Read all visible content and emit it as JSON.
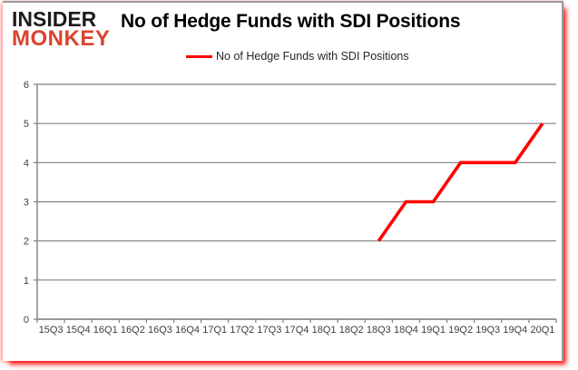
{
  "logo": {
    "line1": "INSIDER",
    "line2": "MONKEY",
    "line1_color": "#1c1c1c",
    "line2_color": "#d9432d"
  },
  "header": {
    "title": "No of Hedge Funds with SDI Positions"
  },
  "legend": {
    "label": "No of Hedge Funds with SDI Positions",
    "swatch_color": "#ff0000"
  },
  "chart_data": {
    "type": "line",
    "title": "No of Hedge Funds with SDI Positions",
    "categories": [
      "15Q3",
      "15Q4",
      "16Q1",
      "16Q2",
      "16Q3",
      "16Q4",
      "17Q1",
      "17Q2",
      "17Q3",
      "17Q4",
      "18Q1",
      "18Q2",
      "18Q3",
      "18Q4",
      "19Q1",
      "19Q2",
      "19Q3",
      "19Q4",
      "20Q1"
    ],
    "series": [
      {
        "name": "No of Hedge Funds with SDI Positions",
        "color": "#ff0000",
        "values": [
          null,
          null,
          null,
          null,
          null,
          null,
          null,
          null,
          null,
          null,
          null,
          null,
          2,
          3,
          3,
          4,
          4,
          4,
          5
        ]
      }
    ],
    "xlabel": "",
    "ylabel": "",
    "ylim": [
      0,
      6
    ],
    "y_ticks": [
      0,
      1,
      2,
      3,
      4,
      5,
      6
    ],
    "grid": "horizontal",
    "legend_position": "top",
    "grid_color": "#808080",
    "axis_color": "#808080"
  }
}
